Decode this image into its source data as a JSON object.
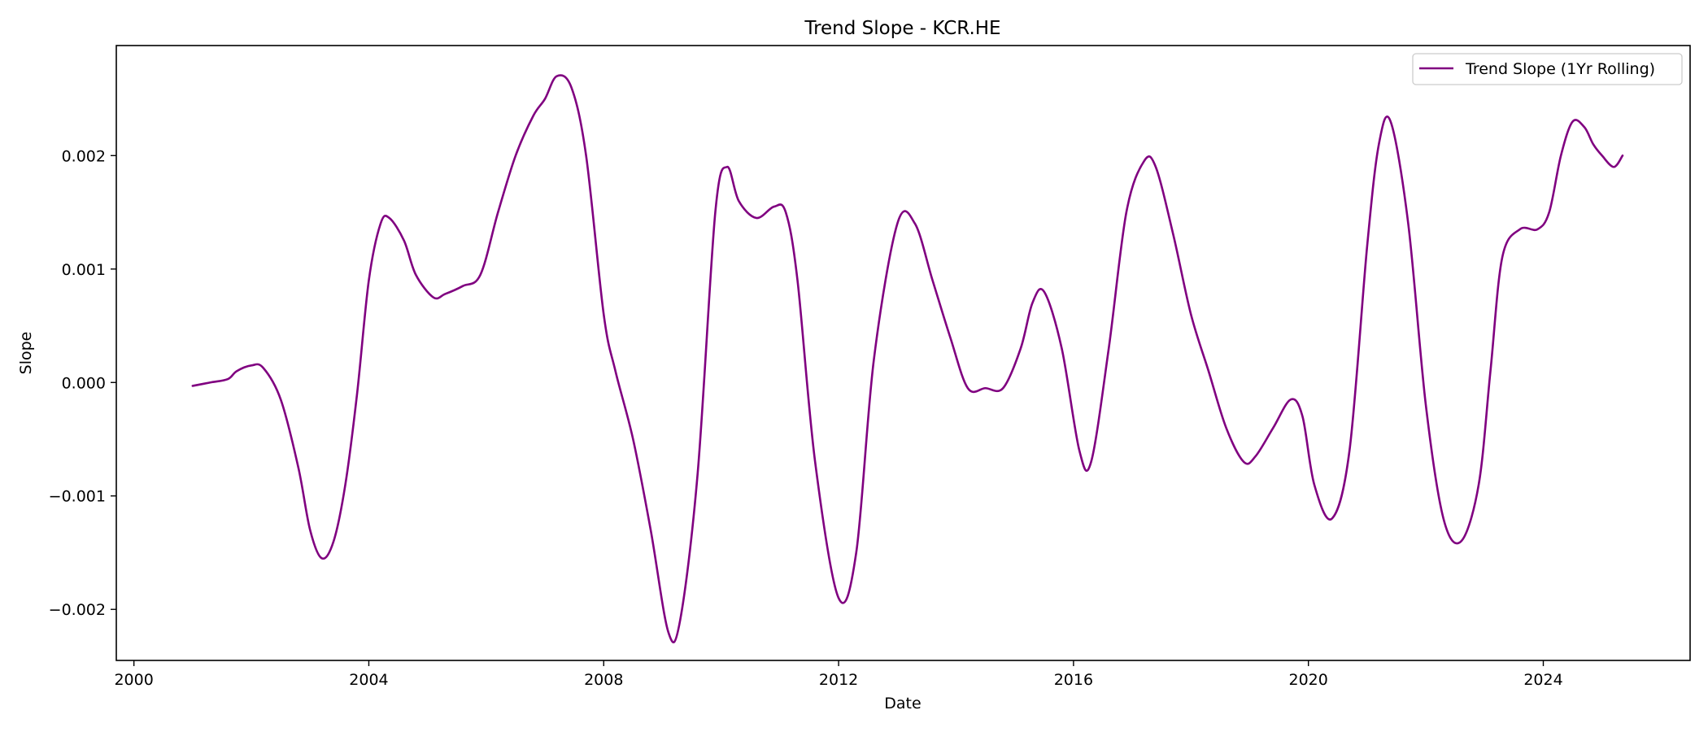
{
  "chart_data": {
    "type": "line",
    "title": "Trend Slope - KCR.HE",
    "xlabel": "Date",
    "ylabel": "Slope",
    "xlim": [
      1999.7,
      2026.5
    ],
    "ylim": [
      -0.00245,
      0.00297
    ],
    "x_ticks": [
      2000,
      2004,
      2008,
      2012,
      2016,
      2020,
      2024
    ],
    "x_tick_labels": [
      "2000",
      "2004",
      "2008",
      "2012",
      "2016",
      "2020",
      "2024"
    ],
    "y_ticks": [
      -0.002,
      -0.001,
      0.0,
      0.001,
      0.002
    ],
    "y_tick_labels": [
      "−0.002",
      "−0.001",
      "0.000",
      "0.001",
      "0.002"
    ],
    "legend_position": "top-right",
    "grid": false,
    "series": [
      {
        "name": "Trend Slope (1Yr Rolling)",
        "color": "#800080",
        "x": [
          2001.0,
          2001.3,
          2001.6,
          2001.75,
          2002.0,
          2002.2,
          2002.5,
          2002.8,
          2003.0,
          2003.2,
          2003.4,
          2003.6,
          2003.8,
          2004.0,
          2004.2,
          2004.35,
          2004.6,
          2004.8,
          2005.1,
          2005.3,
          2005.6,
          2005.9,
          2006.2,
          2006.5,
          2006.8,
          2007.0,
          2007.2,
          2007.45,
          2007.7,
          2008.0,
          2008.2,
          2008.5,
          2008.8,
          2009.1,
          2009.3,
          2009.6,
          2009.9,
          2010.1,
          2010.3,
          2010.6,
          2010.9,
          2011.1,
          2011.3,
          2011.6,
          2012.0,
          2012.3,
          2012.6,
          2013.0,
          2013.3,
          2013.6,
          2013.9,
          2014.2,
          2014.5,
          2014.8,
          2015.1,
          2015.3,
          2015.5,
          2015.8,
          2016.1,
          2016.3,
          2016.6,
          2016.9,
          2017.2,
          2017.4,
          2017.7,
          2018.0,
          2018.3,
          2018.6,
          2018.9,
          2019.1,
          2019.4,
          2019.7,
          2019.9,
          2020.1,
          2020.4,
          2020.7,
          2021.0,
          2021.2,
          2021.4,
          2021.7,
          2022.0,
          2022.3,
          2022.6,
          2022.9,
          2023.1,
          2023.3,
          2023.6,
          2023.9,
          2024.1,
          2024.3,
          2024.5,
          2024.7,
          2024.85,
          2025.0,
          2025.2,
          2025.35
        ],
        "values": [
          -3e-05,
          0.0,
          3e-05,
          0.0001,
          0.00015,
          0.00013,
          -0.00015,
          -0.00075,
          -0.0013,
          -0.00155,
          -0.0014,
          -0.0009,
          -0.0001,
          0.0009,
          0.0014,
          0.00145,
          0.00125,
          0.00095,
          0.00075,
          0.00078,
          0.00085,
          0.00095,
          0.0015,
          0.002,
          0.00235,
          0.0025,
          0.0027,
          0.0026,
          0.002,
          0.0006,
          0.0001,
          -0.0005,
          -0.0013,
          -0.0022,
          -0.0021,
          -0.0008,
          0.0015,
          0.0019,
          0.0016,
          0.00145,
          0.00155,
          0.0015,
          0.0009,
          -0.0007,
          -0.0019,
          -0.0015,
          0.0002,
          0.0014,
          0.0014,
          0.0009,
          0.0004,
          -5e-05,
          -5e-05,
          -5e-05,
          0.0003,
          0.0007,
          0.0008,
          0.0003,
          -0.0006,
          -0.0007,
          0.0003,
          0.0015,
          0.00195,
          0.0019,
          0.0013,
          0.0006,
          0.0001,
          -0.0004,
          -0.0007,
          -0.00065,
          -0.0004,
          -0.00015,
          -0.0003,
          -0.0009,
          -0.0012,
          -0.0006,
          0.0012,
          0.0021,
          0.0023,
          0.0014,
          -0.0002,
          -0.0012,
          -0.0014,
          -0.0009,
          0.0001,
          0.0011,
          0.00135,
          0.00135,
          0.0015,
          0.002,
          0.0023,
          0.00225,
          0.0021,
          0.002,
          0.0019,
          0.002
        ]
      }
    ]
  }
}
